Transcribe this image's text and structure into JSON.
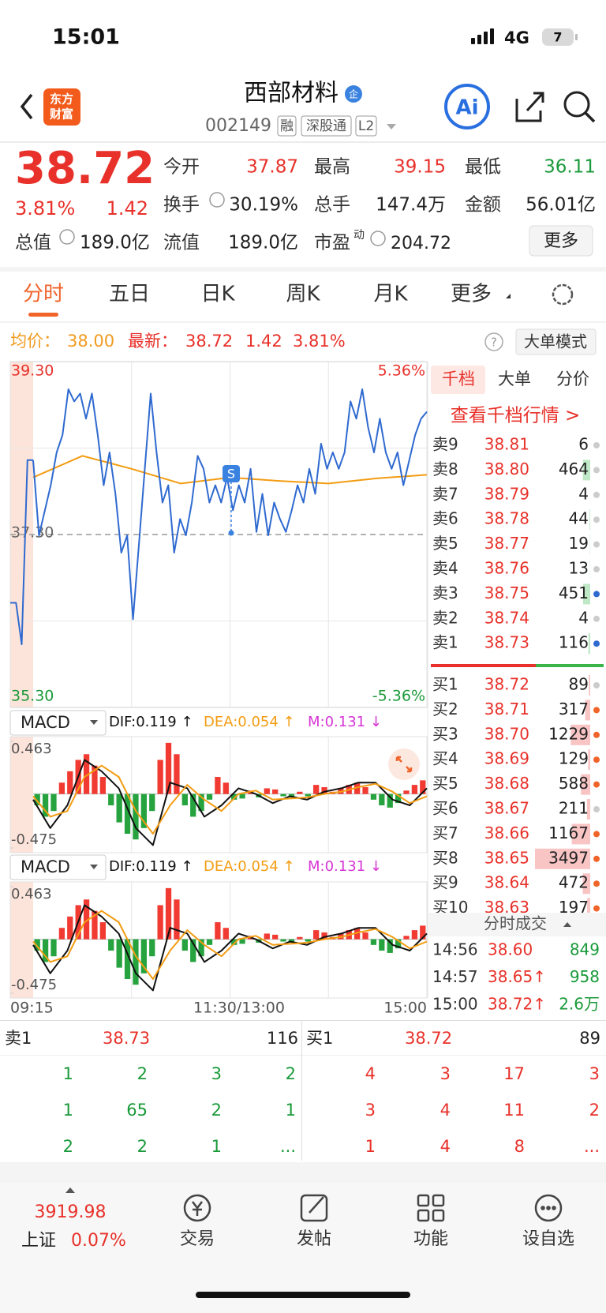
{
  "status_bar": {
    "time": "15:01",
    "network": "4G",
    "battery": "7"
  },
  "header": {
    "logo": [
      "东方",
      "财富"
    ],
    "title": "西部材料",
    "badge": "企",
    "code": "002149",
    "tags": [
      "融",
      "深股通",
      "L2"
    ],
    "ai": "Ai"
  },
  "quote": {
    "price": "38.72",
    "change_pct": "3.81%",
    "change": "1.42",
    "fields": [
      {
        "label": "今开",
        "value": "37.87",
        "color": "#e8312a"
      },
      {
        "label": "最高",
        "value": "39.15",
        "color": "#e8312a"
      },
      {
        "label": "最低",
        "value": "36.11",
        "color": "#1a9a3a"
      },
      {
        "label": "换手",
        "value": "30.19%",
        "color": "#222222"
      },
      {
        "label": "总手",
        "value": "147.4万",
        "color": "#222222"
      },
      {
        "label": "金额",
        "value": "56.01亿",
        "color": "#222222"
      }
    ],
    "row3": [
      {
        "label": "总值",
        "value": "189.0亿"
      },
      {
        "label": "流值",
        "value": "189.0亿"
      },
      {
        "label": "市盈",
        "sup": "动",
        "value": "204.72"
      }
    ],
    "more": "更多"
  },
  "tabs": {
    "items": [
      "分时",
      "五日",
      "日K",
      "周K",
      "月K",
      "更多"
    ],
    "active": 0
  },
  "summary": {
    "avg_label": "均价：",
    "avg": "38.00",
    "last_label": "最新：",
    "last": "38.72",
    "change": "1.42",
    "change_pct": "3.81%",
    "help": "?",
    "mode": "大单模式"
  },
  "chart_data": [
    {
      "type": "line",
      "ylim": [
        35.3,
        39.3
      ],
      "yticks": [
        {
          "value": 39.3,
          "label": "39.30"
        },
        {
          "value": 37.3,
          "label": "37.30"
        },
        {
          "value": 35.3,
          "label": "35.30"
        }
      ],
      "y2lim": [
        -5.36,
        5.36
      ],
      "y2ticks": [
        {
          "value": 5.36,
          "label": "5.36%"
        },
        {
          "value": -5.36,
          "label": "-5.36%"
        }
      ],
      "xlabels": [
        "09:15",
        "11:30/13:00",
        "15:00"
      ],
      "marker": "S",
      "series": [
        {
          "color": "#2f6ad0",
          "values": [
            36.51,
            36.51,
            36.03,
            38.16,
            38.16
          ]
        },
        {
          "color": "#2f6ad0",
          "values": [
            38.16,
            37.29,
            37.58,
            37.87,
            38.25,
            38.45,
            38.98,
            38.84,
            38.93,
            38.64,
            38.93,
            38.45,
            37.87,
            38.25,
            37.77,
            37.09,
            37.29,
            36.32,
            37.19,
            38.06,
            38.93,
            38.25,
            37.67,
            37.87,
            37.09,
            37.48,
            37.29,
            37.67,
            38.21,
            38.06,
            37.67,
            37.87,
            37.67,
            37.96,
            37.58,
            37.87,
            37.67,
            38.06,
            37.33,
            37.77,
            37.29,
            37.67,
            37.48,
            37.33,
            37.58,
            37.87,
            37.67,
            38.06,
            37.77,
            38.35,
            38.06,
            38.25,
            38.06,
            38.25,
            38.84,
            38.64,
            38.98,
            38.54,
            38.25,
            38.64,
            38.25,
            38.06,
            38.25,
            37.87,
            38.16,
            38.45,
            38.64,
            38.72
          ]
        },
        {
          "color": "#f39c12",
          "values": [
            37.96,
            38.21,
            38.06,
            37.89,
            37.96,
            37.92,
            37.89,
            37.95,
            37.99
          ]
        }
      ]
    },
    {
      "type": "macd",
      "indicator": "MACD",
      "dif": "DIF:0.119 ↑",
      "dea": "DEA:0.054 ↑",
      "m": "M:0.131 ↓",
      "ylim": [
        -0.475,
        0.463
      ],
      "yticks": [
        0.463,
        -0.475
      ],
      "histogram": [
        -0.1,
        -0.2,
        -0.15,
        0.1,
        0.2,
        0.3,
        0.35,
        0.25,
        0.15,
        -0.1,
        -0.25,
        -0.35,
        -0.4,
        -0.3,
        -0.15,
        0.3,
        0.45,
        0.35,
        -0.1,
        -0.2,
        -0.15,
        -0.05,
        0.15,
        0.1,
        -0.05,
        -0.04,
        0.03,
        -0.03,
        0.05,
        0.04,
        -0.02,
        -0.03,
        0.02,
        -0.02,
        0.08,
        0.06,
        0.02,
        0.05,
        0.08,
        0.1,
        0.06,
        -0.05,
        -0.1,
        -0.12,
        -0.08,
        0.03,
        0.08,
        0.12
      ],
      "series": [
        {
          "color": "#111111",
          "values": [
            -0.05,
            -0.3,
            -0.1,
            0.3,
            0.2,
            0.05,
            -0.3,
            -0.45,
            0.1,
            0.05,
            -0.2,
            -0.1,
            0.05,
            0.0,
            -0.08,
            -0.02,
            -0.05,
            0.02,
            0.05,
            0.1,
            0.1,
            -0.05,
            -0.1,
            0.05
          ]
        },
        {
          "color": "#f39c12",
          "values": [
            -0.02,
            -0.2,
            -0.15,
            0.15,
            0.25,
            0.15,
            -0.15,
            -0.35,
            -0.1,
            0.08,
            -0.05,
            -0.15,
            0.0,
            0.03,
            -0.05,
            -0.04,
            -0.03,
            0.0,
            0.02,
            0.06,
            0.09,
            0.02,
            -0.08,
            -0.02
          ]
        }
      ]
    }
  ],
  "depth": {
    "tabs": [
      "千档",
      "大单",
      "分价"
    ],
    "link": "查看千档行情 >",
    "asks": [
      {
        "label": "卖9",
        "price": "38.81",
        "volume": 6,
        "dot": "#cccccc"
      },
      {
        "label": "卖8",
        "price": "38.80",
        "volume": 464,
        "dot": "#cccccc"
      },
      {
        "label": "卖7",
        "price": "38.79",
        "volume": 4,
        "dot": "#cccccc"
      },
      {
        "label": "卖6",
        "price": "38.78",
        "volume": 44,
        "dot": "#cccccc"
      },
      {
        "label": "卖5",
        "price": "38.77",
        "volume": 19,
        "dot": "#cccccc"
      },
      {
        "label": "卖4",
        "price": "38.76",
        "volume": 13,
        "dot": "#cccccc"
      },
      {
        "label": "卖3",
        "price": "38.75",
        "volume": 451,
        "dot": "#2f6ad0"
      },
      {
        "label": "卖2",
        "price": "38.74",
        "volume": 4,
        "dot": "#cccccc"
      },
      {
        "label": "卖1",
        "price": "38.73",
        "volume": 116,
        "dot": "#2f6ad0"
      }
    ],
    "bids": [
      {
        "label": "买1",
        "price": "38.72",
        "volume": 89,
        "dot": "#cccccc"
      },
      {
        "label": "买2",
        "price": "38.71",
        "volume": 317,
        "dot": "#f0642a"
      },
      {
        "label": "买3",
        "price": "38.70",
        "volume": 1229,
        "dot": "#f0642a"
      },
      {
        "label": "买4",
        "price": "38.69",
        "volume": 129,
        "dot": "#f0642a"
      },
      {
        "label": "买5",
        "price": "38.68",
        "volume": 588,
        "dot": "#f0642a"
      },
      {
        "label": "买6",
        "price": "38.67",
        "volume": 211,
        "dot": "#cccccc"
      },
      {
        "label": "买7",
        "price": "38.66",
        "volume": 1167,
        "dot": "#f0642a"
      },
      {
        "label": "买8",
        "price": "38.65",
        "volume": 3497,
        "dot": "#f0642a"
      },
      {
        "label": "买9",
        "price": "38.64",
        "volume": 472,
        "dot": "#f0642a"
      },
      {
        "label": "买10",
        "price": "38.63",
        "volume": 197,
        "dot": "#f0642a"
      }
    ],
    "trades_title": "分时成交",
    "trades": [
      {
        "time": "14:56",
        "price": "38.60",
        "volume": "849"
      },
      {
        "time": "14:57",
        "price": "38.65↑",
        "volume": "958"
      },
      {
        "time": "15:00",
        "price": "38.72↑",
        "volume": "2.6万"
      }
    ]
  },
  "queue": {
    "ask": {
      "label": "卖1",
      "price": "38.73",
      "volume": "116",
      "orders": [
        [
          "1",
          "2",
          "3",
          "2"
        ],
        [
          "1",
          "65",
          "2",
          "1"
        ],
        [
          "2",
          "2",
          "1",
          "..."
        ]
      ]
    },
    "bid": {
      "label": "买1",
      "price": "38.72",
      "volume": "89",
      "orders": [
        [
          "4",
          "3",
          "17",
          "3"
        ],
        [
          "3",
          "4",
          "11",
          "2"
        ],
        [
          "1",
          "4",
          "8",
          "..."
        ]
      ]
    }
  },
  "nav": {
    "index_value": "3919.98",
    "index_name": "上证",
    "index_change": "0.07%",
    "items": [
      "交易",
      "发帖",
      "功能",
      "设自选"
    ]
  }
}
